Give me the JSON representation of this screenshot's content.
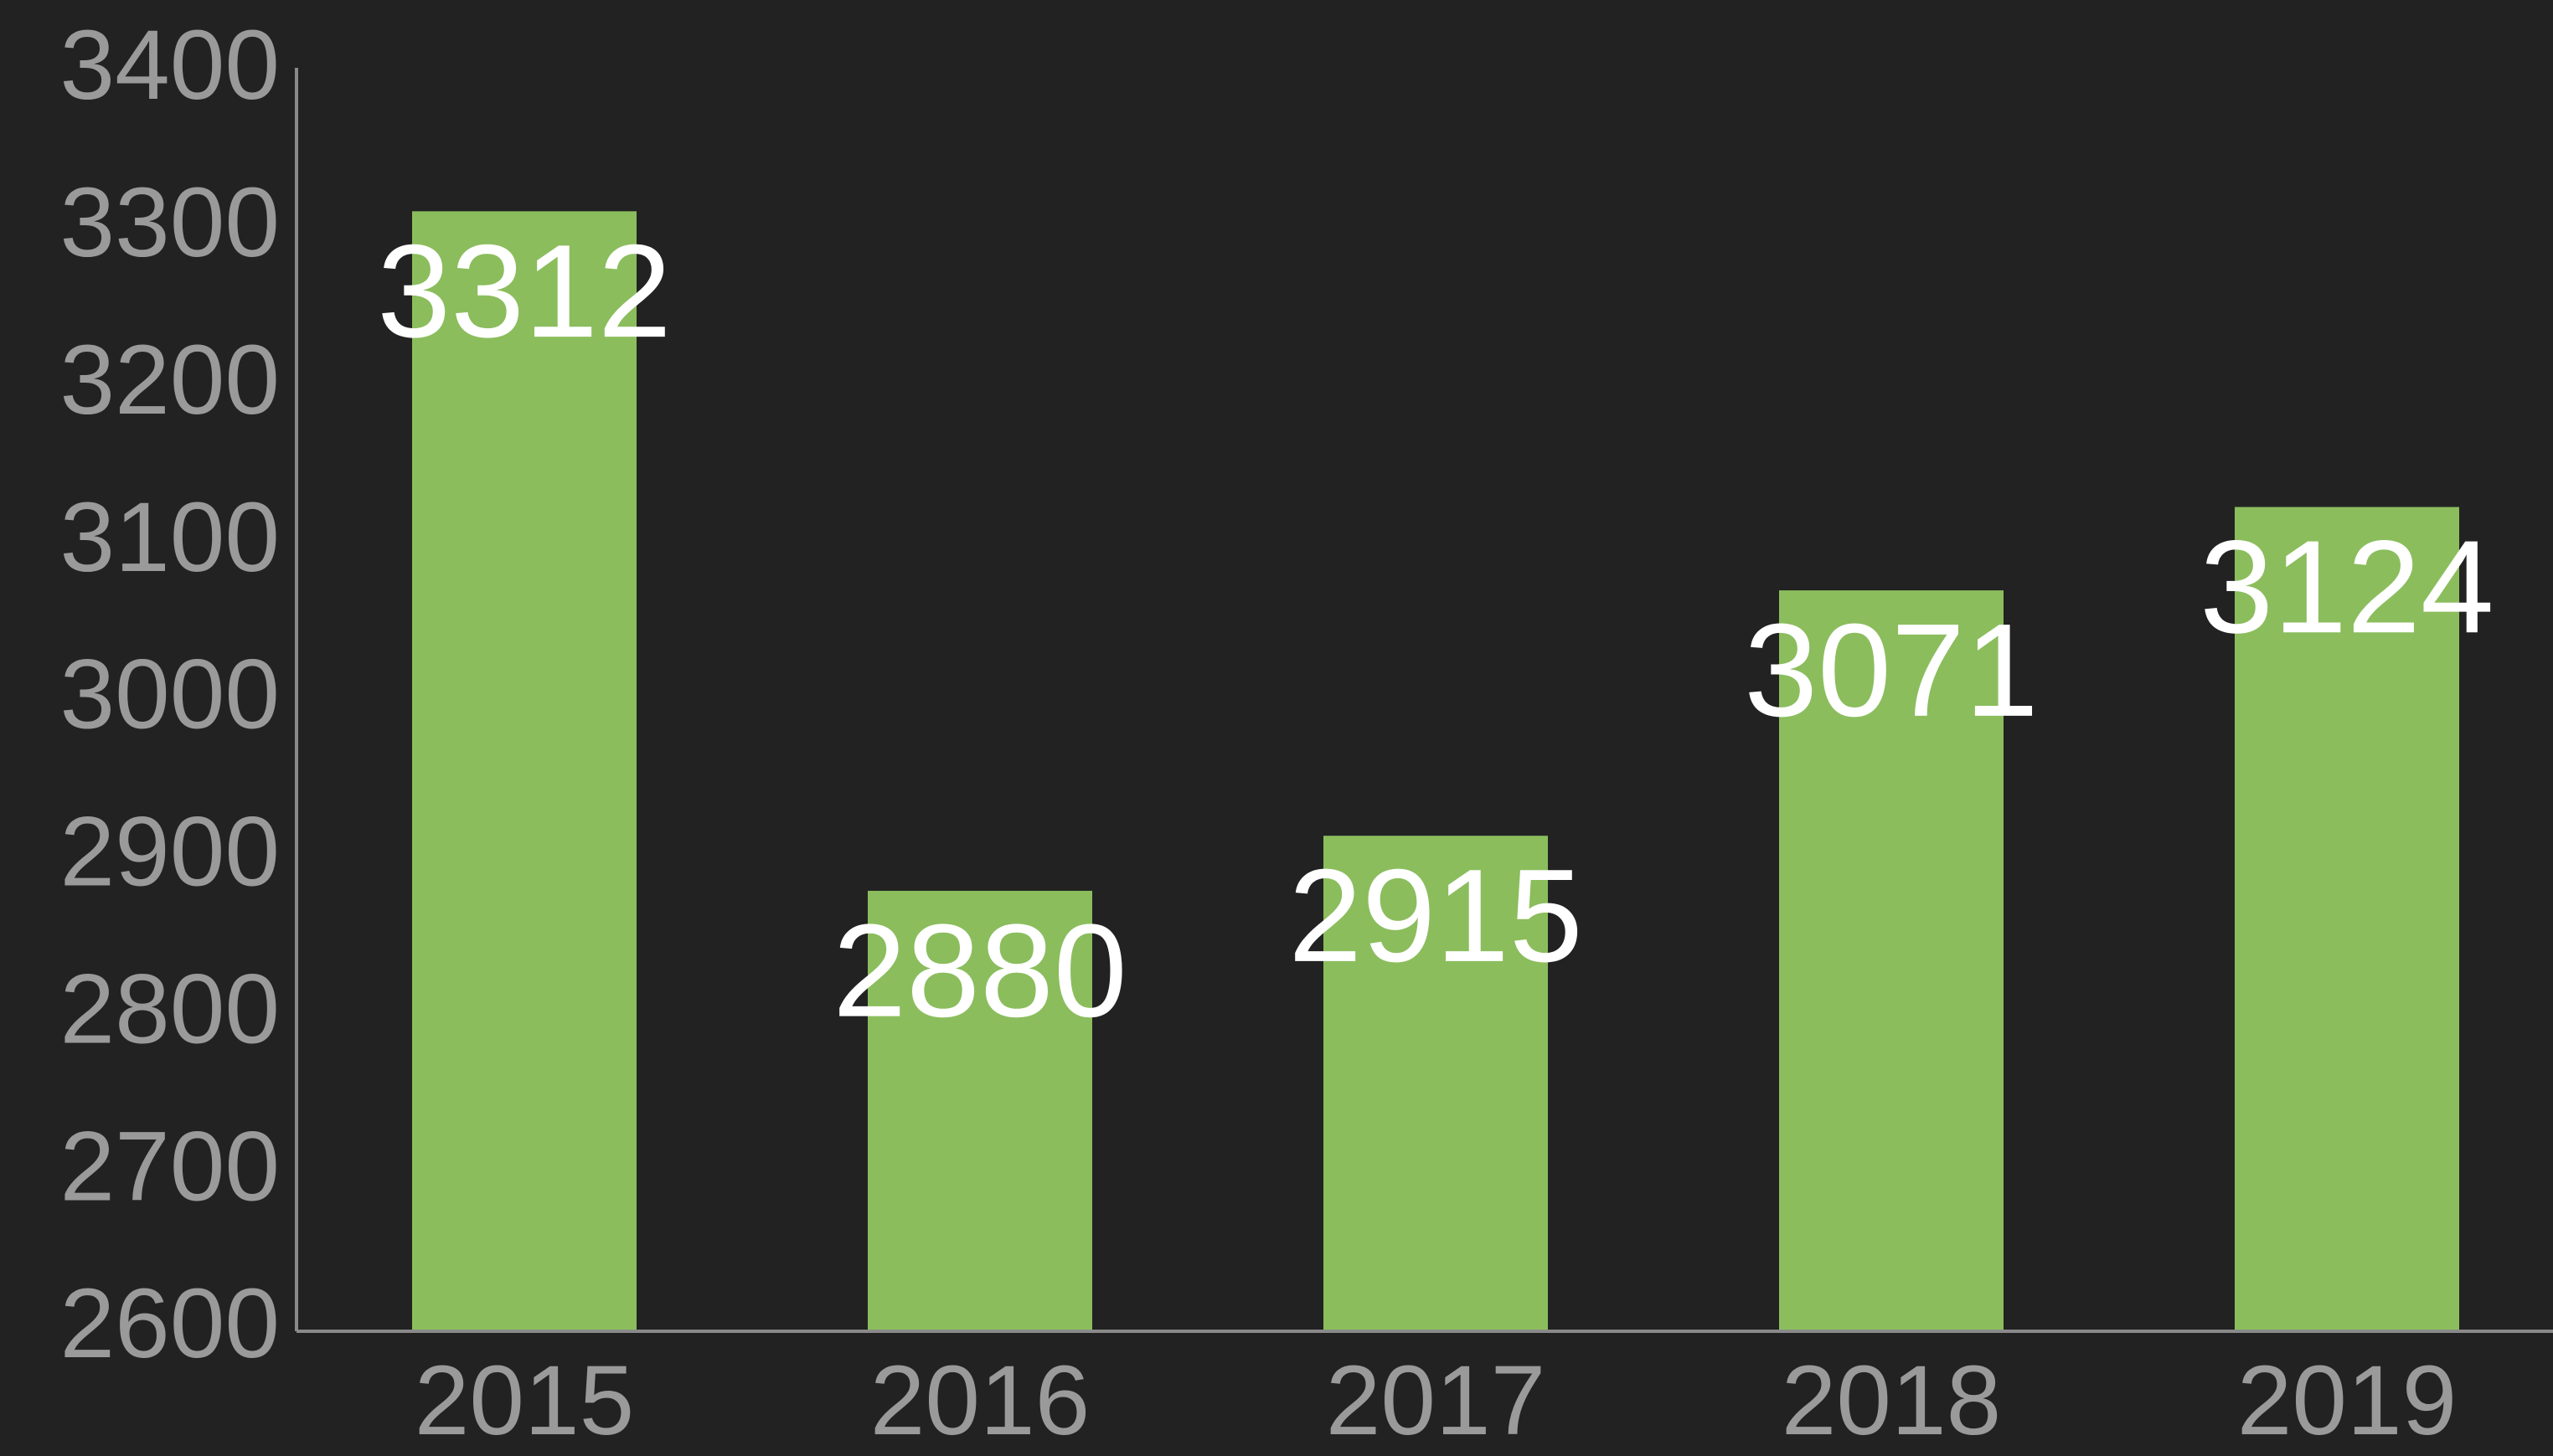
{
  "chart_data": {
    "type": "bar",
    "categories": [
      "2015",
      "2016",
      "2017",
      "2018",
      "2019"
    ],
    "values": [
      3312,
      2880,
      2915,
      3071,
      3124
    ],
    "color": "#8bbd5d",
    "ylim": [
      2600,
      3400
    ],
    "yticks": [
      2600,
      2700,
      2800,
      2900,
      3000,
      3100,
      3200,
      3300,
      3400
    ],
    "grid": false
  }
}
